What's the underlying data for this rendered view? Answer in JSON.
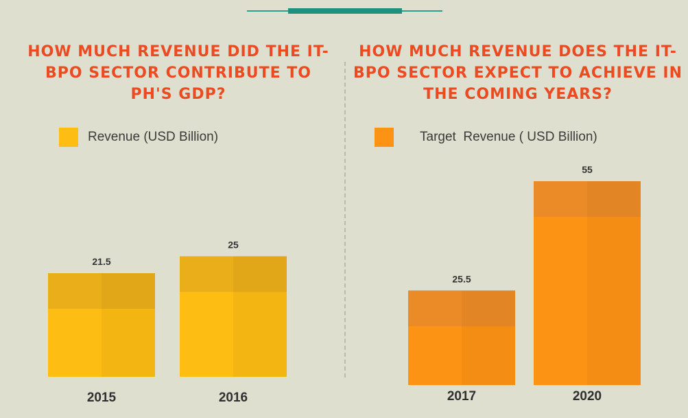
{
  "chart_data": [
    {
      "type": "bar",
      "title": "HOW MUCH REVENUE DID THE IT-BPO SECTOR CONTRIBUTE TO PH'S GDP?",
      "legend": "Revenue (USD Billion)",
      "categories": [
        "2015",
        "2016"
      ],
      "series": [
        {
          "name": "Revenue (USD Billion)",
          "values": [
            21.5,
            25
          ]
        }
      ],
      "data_labels": [
        "21.5",
        "25"
      ],
      "color": "#fdbd13",
      "accent": "#e8ac1d",
      "legend_placement": "top-left",
      "grid": false
    },
    {
      "type": "bar",
      "title": "HOW MUCH REVENUE DOES THE IT-BPO SECTOR EXPECT TO ACHIEVE IN THE COMING YEARS?",
      "legend": "Target  Revenue ( USD Billion)",
      "categories": [
        "2017",
        "2020"
      ],
      "series": [
        {
          "name": "Target  Revenue ( USD Billion)",
          "values": [
            25.5,
            55
          ]
        }
      ],
      "data_labels": [
        "25.5",
        "55"
      ],
      "color": "#fd9314",
      "accent": "#e88a2a",
      "legend_placement": "top-left",
      "grid": false
    }
  ],
  "colors": {
    "background": "#dedfcf",
    "title": "#ec4a21",
    "rule": "#1f8f7e"
  }
}
